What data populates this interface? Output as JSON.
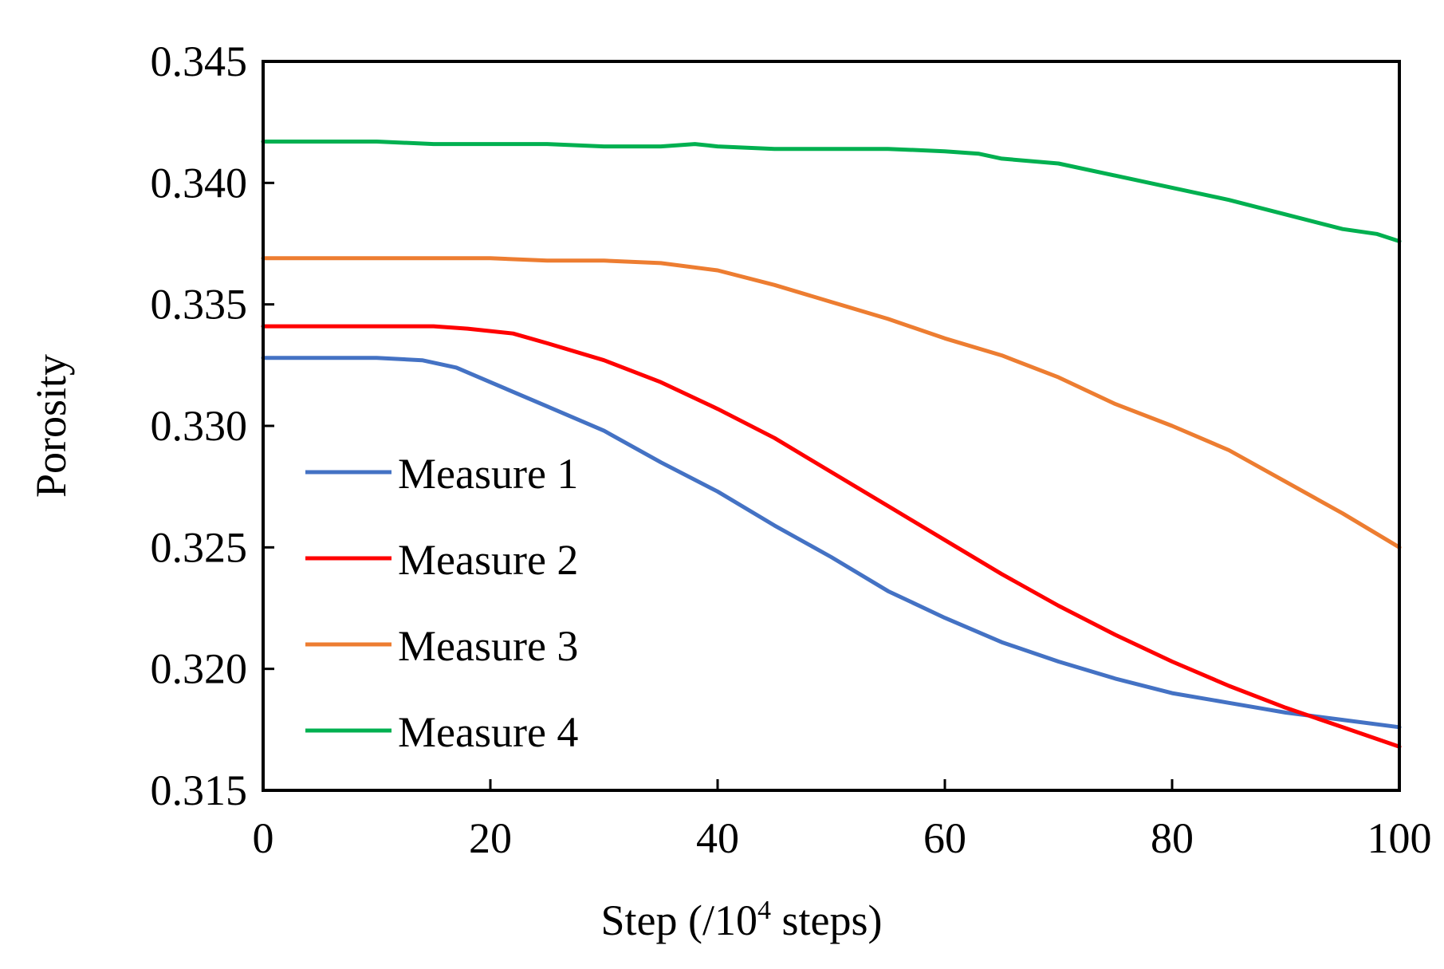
{
  "chart_data": {
    "type": "line",
    "title": "",
    "xlabel_main": "Step (/10",
    "xlabel_sup": "4",
    "xlabel_tail": " steps)",
    "ylabel": "Porosity",
    "xlim": [
      0,
      100
    ],
    "ylim": [
      0.315,
      0.345
    ],
    "x_ticks": [
      0,
      20,
      40,
      60,
      80,
      100
    ],
    "x_tick_labels": [
      "0",
      "20",
      "40",
      "60",
      "80",
      "100"
    ],
    "y_ticks": [
      0.315,
      0.32,
      0.325,
      0.33,
      0.335,
      0.34,
      0.345
    ],
    "y_tick_labels": [
      "0.315",
      "0.320",
      "0.325",
      "0.330",
      "0.335",
      "0.340",
      "0.345"
    ],
    "grid": false,
    "legend_position": "bottom-left",
    "series": [
      {
        "name": "Measure 1",
        "color": "#4472C4",
        "x": [
          0,
          5,
          10,
          14,
          17,
          20,
          25,
          30,
          35,
          40,
          45,
          50,
          55,
          60,
          65,
          70,
          75,
          80,
          85,
          90,
          95,
          100
        ],
        "y": [
          0.3328,
          0.3328,
          0.3328,
          0.3327,
          0.3324,
          0.3318,
          0.3308,
          0.3298,
          0.3285,
          0.3273,
          0.3259,
          0.3246,
          0.3232,
          0.3221,
          0.3211,
          0.3203,
          0.3196,
          0.319,
          0.3186,
          0.3182,
          0.3179,
          0.3176
        ]
      },
      {
        "name": "Measure 2",
        "color": "#FF0000",
        "x": [
          0,
          5,
          10,
          15,
          18,
          22,
          25,
          30,
          35,
          40,
          45,
          50,
          55,
          60,
          65,
          70,
          75,
          80,
          85,
          90,
          95,
          100
        ],
        "y": [
          0.3341,
          0.3341,
          0.3341,
          0.3341,
          0.334,
          0.3338,
          0.3334,
          0.3327,
          0.3318,
          0.3307,
          0.3295,
          0.3281,
          0.3267,
          0.3253,
          0.3239,
          0.3226,
          0.3214,
          0.3203,
          0.3193,
          0.3184,
          0.3176,
          0.3168
        ]
      },
      {
        "name": "Measure 3",
        "color": "#ED7D31",
        "x": [
          0,
          5,
          10,
          15,
          20,
          25,
          30,
          35,
          40,
          45,
          50,
          55,
          60,
          65,
          70,
          75,
          80,
          85,
          90,
          95,
          100
        ],
        "y": [
          0.3369,
          0.3369,
          0.3369,
          0.3369,
          0.3369,
          0.3368,
          0.3368,
          0.3367,
          0.3364,
          0.3358,
          0.3351,
          0.3344,
          0.3336,
          0.3329,
          0.332,
          0.3309,
          0.33,
          0.329,
          0.3277,
          0.3264,
          0.325
        ]
      },
      {
        "name": "Measure 4",
        "color": "#00B050",
        "x": [
          0,
          5,
          10,
          15,
          20,
          25,
          30,
          35,
          38,
          40,
          45,
          50,
          55,
          60,
          63,
          65,
          70,
          75,
          80,
          85,
          90,
          95,
          98,
          100
        ],
        "y": [
          0.3417,
          0.3417,
          0.3417,
          0.3416,
          0.3416,
          0.3416,
          0.3415,
          0.3415,
          0.3416,
          0.3415,
          0.3414,
          0.3414,
          0.3414,
          0.3413,
          0.3412,
          0.341,
          0.3408,
          0.3403,
          0.3398,
          0.3393,
          0.3387,
          0.3381,
          0.3379,
          0.3376
        ]
      }
    ]
  }
}
